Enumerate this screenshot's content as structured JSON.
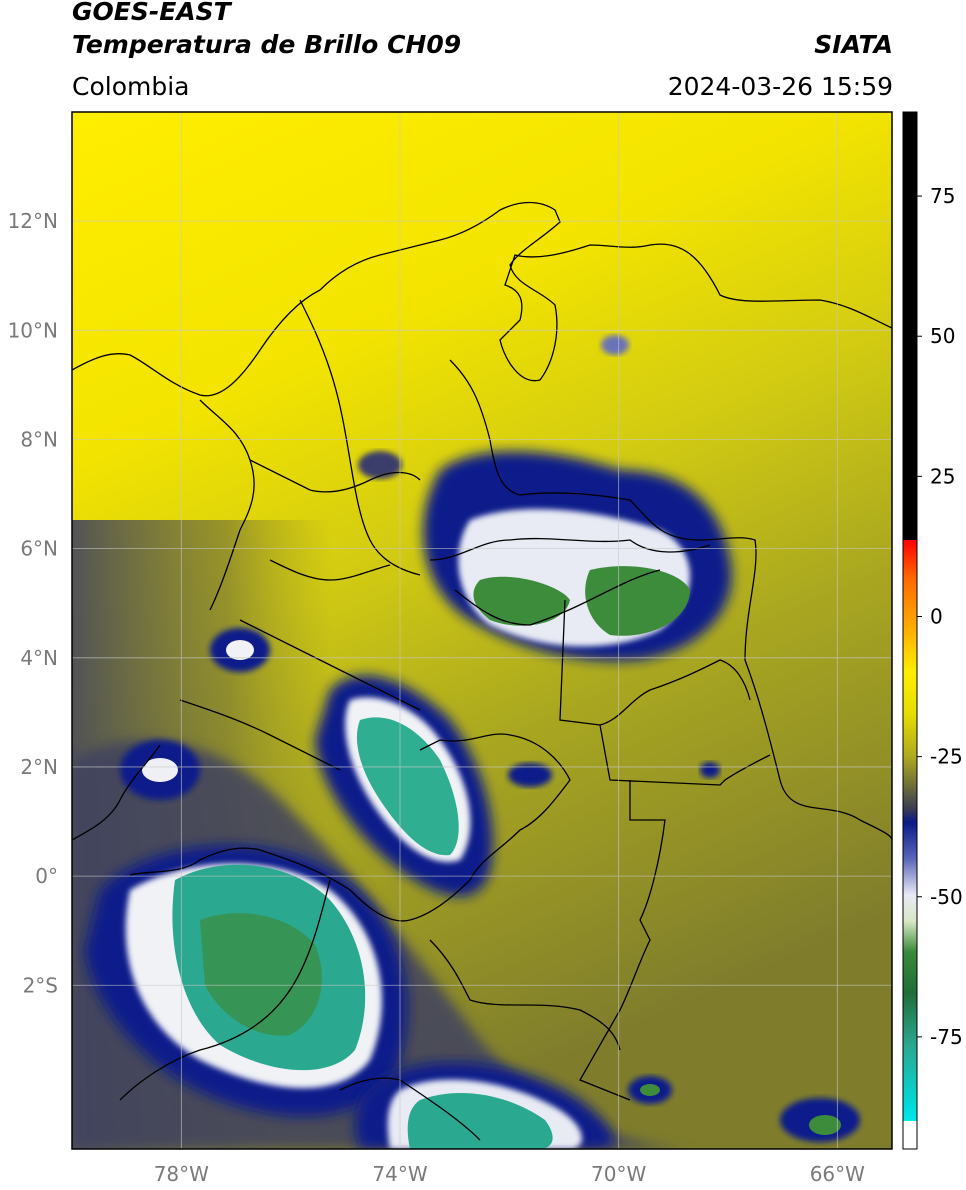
{
  "header": {
    "title_line1": "GOES-EAST",
    "title_line2": "Temperatura de Brillo CH09",
    "organization": "SIATA",
    "region": "Colombia",
    "timestamp": "2024-03-26 15:59"
  },
  "map": {
    "extent": {
      "lon_min": -80,
      "lon_max": -65,
      "lat_min": -5,
      "lat_max": 14
    },
    "lat_ticks": [
      {
        "lat": 12,
        "label": "12°N"
      },
      {
        "lat": 10,
        "label": "10°N"
      },
      {
        "lat": 8,
        "label": "8°N"
      },
      {
        "lat": 6,
        "label": "6°N"
      },
      {
        "lat": 4,
        "label": "4°N"
      },
      {
        "lat": 2,
        "label": "2°N"
      },
      {
        "lat": 0,
        "label": "0°"
      },
      {
        "lat": -2,
        "label": "2°S"
      }
    ],
    "lon_ticks": [
      {
        "lon": -78,
        "label": "78°W"
      },
      {
        "lon": -74,
        "label": "74°W"
      },
      {
        "lon": -70,
        "label": "70°W"
      },
      {
        "lon": -66,
        "label": "66°W"
      }
    ],
    "colors": {
      "warm_yellow": "#ffee00",
      "mid_olive": "#a9a720",
      "gray_olive": "#5f6040",
      "deep_navy": "#0b1a8a",
      "white_band": "#f2f4f8",
      "green": "#3c8c3c",
      "teal": "#2aa890",
      "border_line": "#000000",
      "grid_line": "#c8c8c8"
    }
  },
  "colorbar": {
    "range": [
      -95,
      90
    ],
    "ticks": [
      {
        "value": 75,
        "label": "75"
      },
      {
        "value": 50,
        "label": "50"
      },
      {
        "value": 25,
        "label": "25"
      },
      {
        "value": 0,
        "label": "0"
      },
      {
        "value": -25,
        "label": "-25"
      },
      {
        "value": -50,
        "label": "-50"
      },
      {
        "value": -75,
        "label": "-75"
      }
    ]
  }
}
